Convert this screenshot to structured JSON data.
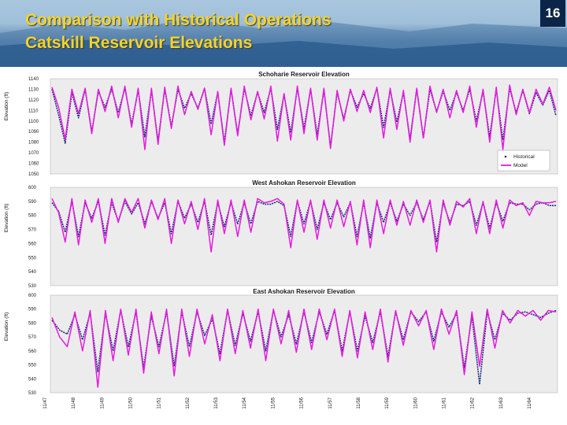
{
  "slide": {
    "title_line1": "Comparison with Historical Operations",
    "title_line2": "Catskill Reservoir Elevations",
    "number": "16"
  },
  "colors": {
    "historical": "#1d2f7a",
    "model": "#e81ae0",
    "plot_bg": "#ececec",
    "title_text": "#f2d42a",
    "number_bg": "#0c2448"
  },
  "chart_data": [
    {
      "type": "line",
      "title": "Schoharie Reservoir Elevation",
      "ylabel": "Elevation (ft)",
      "ylim": [
        1050,
        1140
      ],
      "yticks": [
        1050,
        1060,
        1070,
        1080,
        1090,
        1100,
        1110,
        1120,
        1130,
        1140
      ],
      "legend": {
        "position": "bottom-right",
        "entries": [
          "Historical",
          "Model"
        ]
      },
      "series": [
        {
          "name": "Historical",
          "values": [
            1130,
            1106,
            1079,
            1127,
            1103,
            1130,
            1090,
            1128,
            1113,
            1130,
            1108,
            1131,
            1097,
            1129,
            1085,
            1129,
            1081,
            1130,
            1095,
            1130,
            1112,
            1126,
            1112,
            1131,
            1097,
            1127,
            1080,
            1130,
            1088,
            1131,
            1105,
            1127,
            1108,
            1131,
            1092,
            1125,
            1089,
            1131,
            1093,
            1130,
            1087,
            1129,
            1076,
            1127,
            1102,
            1129,
            1113,
            1126,
            1112,
            1131,
            1094,
            1129,
            1099,
            1127,
            1083,
            1130,
            1084,
            1130,
            1109,
            1128,
            1110,
            1127,
            1110,
            1130,
            1100,
            1128,
            1085,
            1130,
            1082,
            1131,
            1108,
            1129,
            1107,
            1127,
            1115,
            1129,
            1105
          ]
        },
        {
          "name": "Model",
          "values": [
            1132,
            1113,
            1083,
            1130,
            1107,
            1131,
            1088,
            1130,
            1109,
            1133,
            1103,
            1133,
            1094,
            1131,
            1073,
            1131,
            1078,
            1132,
            1093,
            1133,
            1106,
            1128,
            1111,
            1131,
            1087,
            1128,
            1077,
            1131,
            1086,
            1133,
            1101,
            1128,
            1102,
            1133,
            1081,
            1126,
            1082,
            1133,
            1088,
            1131,
            1082,
            1131,
            1074,
            1129,
            1100,
            1130,
            1109,
            1129,
            1108,
            1132,
            1084,
            1131,
            1092,
            1129,
            1080,
            1131,
            1084,
            1133,
            1108,
            1130,
            1103,
            1129,
            1108,
            1133,
            1094,
            1130,
            1080,
            1132,
            1073,
            1134,
            1106,
            1130,
            1108,
            1130,
            1116,
            1132,
            1110
          ]
        }
      ]
    },
    {
      "type": "line",
      "title": "West Ashokan Reservoir Elevation",
      "ylabel": "Elevation (ft)",
      "ylim": [
        530,
        600
      ],
      "yticks": [
        530,
        540,
        550,
        560,
        570,
        580,
        590,
        600
      ],
      "series": [
        {
          "name": "Historical",
          "values": [
            589,
            583,
            568,
            590,
            565,
            589,
            578,
            590,
            566,
            589,
            576,
            590,
            581,
            589,
            574,
            590,
            578,
            589,
            567,
            590,
            578,
            588,
            575,
            590,
            566,
            589,
            572,
            589,
            574,
            589,
            574,
            590,
            588,
            588,
            590,
            587,
            565,
            590,
            574,
            590,
            570,
            589,
            577,
            589,
            579,
            589,
            565,
            589,
            564,
            589,
            575,
            589,
            576,
            588,
            580,
            589,
            577,
            590,
            561,
            589,
            575,
            588,
            587,
            590,
            573,
            589,
            571,
            589,
            576,
            589,
            588,
            588,
            584,
            588,
            589,
            587,
            587
          ]
        },
        {
          "name": "Model",
          "values": [
            592,
            582,
            561,
            592,
            559,
            591,
            575,
            592,
            560,
            592,
            575,
            592,
            582,
            592,
            571,
            591,
            577,
            592,
            560,
            591,
            574,
            590,
            570,
            592,
            554,
            591,
            567,
            591,
            565,
            591,
            568,
            592,
            589,
            590,
            592,
            588,
            557,
            591,
            568,
            591,
            563,
            591,
            571,
            591,
            572,
            590,
            559,
            591,
            557,
            591,
            567,
            591,
            573,
            590,
            573,
            591,
            575,
            591,
            554,
            591,
            573,
            590,
            586,
            592,
            567,
            590,
            567,
            591,
            571,
            591,
            587,
            589,
            580,
            590,
            589,
            589,
            590
          ]
        }
      ]
    },
    {
      "type": "line",
      "title": "East Ashokan Reservoir Elevation",
      "ylabel": "Elevation (ft)",
      "ylim": [
        530,
        600
      ],
      "yticks": [
        530,
        540,
        550,
        560,
        570,
        580,
        590,
        600
      ],
      "xticks": [
        "11/47",
        "11/48",
        "11/49",
        "11/50",
        "11/51",
        "11/52",
        "11/53",
        "11/54",
        "11/55",
        "11/56",
        "11/57",
        "11/58",
        "11/59",
        "11/60",
        "11/61",
        "11/62",
        "11/63",
        "11/64"
      ],
      "series": [
        {
          "name": "Historical",
          "values": [
            582,
            575,
            572,
            586,
            568,
            587,
            545,
            587,
            560,
            589,
            563,
            588,
            548,
            585,
            563,
            588,
            549,
            588,
            563,
            588,
            571,
            583,
            558,
            589,
            564,
            587,
            567,
            588,
            560,
            589,
            570,
            586,
            565,
            588,
            566,
            588,
            572,
            589,
            560,
            588,
            560,
            585,
            566,
            588,
            556,
            588,
            568,
            588,
            581,
            588,
            567,
            588,
            577,
            587,
            548,
            585,
            536,
            588,
            568,
            587,
            582,
            587,
            588,
            586,
            584,
            587,
            589
          ]
        },
        {
          "name": "Model",
          "values": [
            584,
            570,
            563,
            588,
            560,
            589,
            534,
            589,
            553,
            590,
            557,
            590,
            544,
            588,
            558,
            590,
            542,
            590,
            556,
            590,
            565,
            586,
            553,
            590,
            558,
            589,
            562,
            590,
            553,
            590,
            565,
            589,
            559,
            590,
            561,
            590,
            568,
            590,
            556,
            589,
            555,
            588,
            561,
            590,
            552,
            589,
            564,
            589,
            578,
            589,
            561,
            590,
            572,
            589,
            543,
            588,
            549,
            590,
            562,
            589,
            580,
            589,
            585,
            589,
            582,
            589,
            588
          ]
        }
      ]
    }
  ]
}
